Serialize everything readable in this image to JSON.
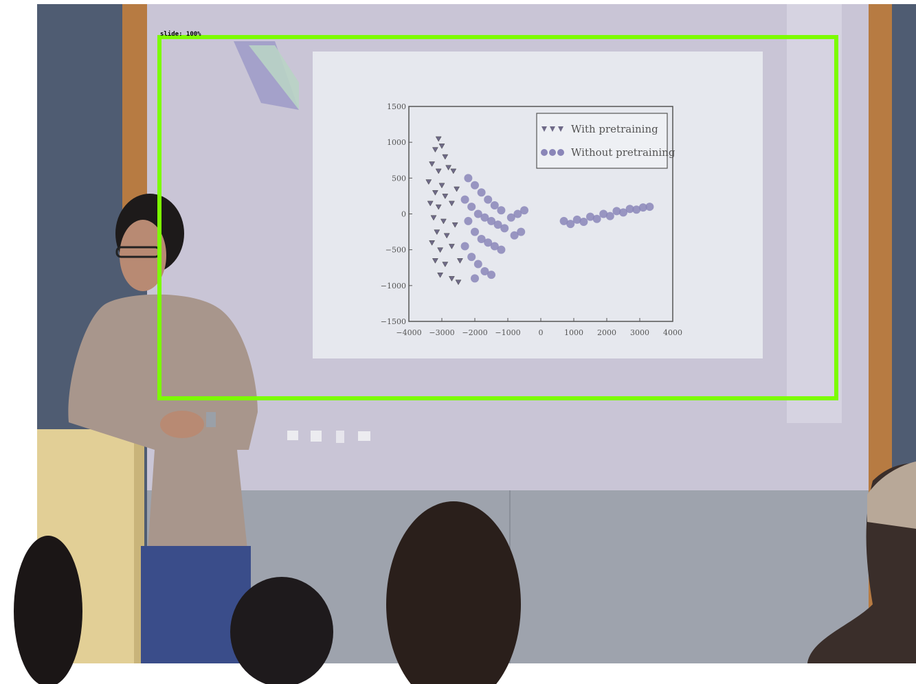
{
  "detection": {
    "label": "slide: 100%",
    "box_color": "#7CFC00"
  },
  "slide": {
    "taskbar_icons": [
      "folder-icon",
      "store-icon",
      "doc-icon",
      "mail-icon"
    ]
  },
  "chart_data": {
    "type": "scatter",
    "x_ticks": [
      "−4000",
      "−3000",
      "−2000",
      "−1000",
      "0",
      "1000",
      "2000",
      "3000",
      "4000"
    ],
    "y_ticks": [
      "1500",
      "1000",
      "500",
      "0",
      "−500",
      "−1000",
      "−1500"
    ],
    "xlim": [
      -4000,
      4000
    ],
    "ylim": [
      -1500,
      1500
    ],
    "legend_position": "top-right",
    "series": [
      {
        "name": "With pretraining",
        "marker": "triangle",
        "color": "#6f6a88",
        "points": [
          [
            -3200,
            900
          ],
          [
            -3100,
            1050
          ],
          [
            -3000,
            950
          ],
          [
            -3300,
            700
          ],
          [
            -2900,
            800
          ],
          [
            -3100,
            600
          ],
          [
            -3400,
            450
          ],
          [
            -2800,
            650
          ],
          [
            -3000,
            400
          ],
          [
            -3200,
            300
          ],
          [
            -3350,
            150
          ],
          [
            -2900,
            250
          ],
          [
            -3100,
            100
          ],
          [
            -3250,
            -50
          ],
          [
            -2950,
            -100
          ],
          [
            -3150,
            -250
          ],
          [
            -3300,
            -400
          ],
          [
            -2850,
            -300
          ],
          [
            -3050,
            -500
          ],
          [
            -3200,
            -650
          ],
          [
            -2900,
            -700
          ],
          [
            -3050,
            -850
          ],
          [
            -2700,
            -900
          ],
          [
            -2500,
            -950
          ],
          [
            -2650,
            600
          ],
          [
            -2550,
            350
          ],
          [
            -2700,
            150
          ],
          [
            -2600,
            -150
          ],
          [
            -2700,
            -450
          ],
          [
            -2450,
            -650
          ]
        ]
      },
      {
        "name": "Without pretraining",
        "marker": "circle",
        "color": "#8a86b8",
        "points": [
          [
            -2200,
            500
          ],
          [
            -2000,
            400
          ],
          [
            -1800,
            300
          ],
          [
            -1600,
            200
          ],
          [
            -1400,
            120
          ],
          [
            -1200,
            50
          ],
          [
            -2300,
            200
          ],
          [
            -2100,
            100
          ],
          [
            -1900,
            0
          ],
          [
            -1700,
            -50
          ],
          [
            -1500,
            -100
          ],
          [
            -1300,
            -150
          ],
          [
            -1100,
            -200
          ],
          [
            -2200,
            -100
          ],
          [
            -2000,
            -250
          ],
          [
            -1800,
            -350
          ],
          [
            -1600,
            -400
          ],
          [
            -1400,
            -450
          ],
          [
            -1200,
            -500
          ],
          [
            -2300,
            -450
          ],
          [
            -2100,
            -600
          ],
          [
            -1900,
            -700
          ],
          [
            -1700,
            -800
          ],
          [
            -1500,
            -850
          ],
          [
            -2000,
            -900
          ],
          [
            -900,
            -50
          ],
          [
            -700,
            0
          ],
          [
            -500,
            50
          ],
          [
            -800,
            -300
          ],
          [
            -600,
            -250
          ],
          [
            700,
            -100
          ],
          [
            1100,
            -80
          ],
          [
            1500,
            -40
          ],
          [
            1900,
            0
          ],
          [
            2300,
            40
          ],
          [
            2700,
            70
          ],
          [
            3100,
            90
          ],
          [
            3300,
            100
          ],
          [
            900,
            -140
          ],
          [
            1300,
            -110
          ],
          [
            1700,
            -70
          ],
          [
            2100,
            -30
          ],
          [
            2500,
            20
          ],
          [
            2900,
            60
          ]
        ]
      }
    ]
  }
}
